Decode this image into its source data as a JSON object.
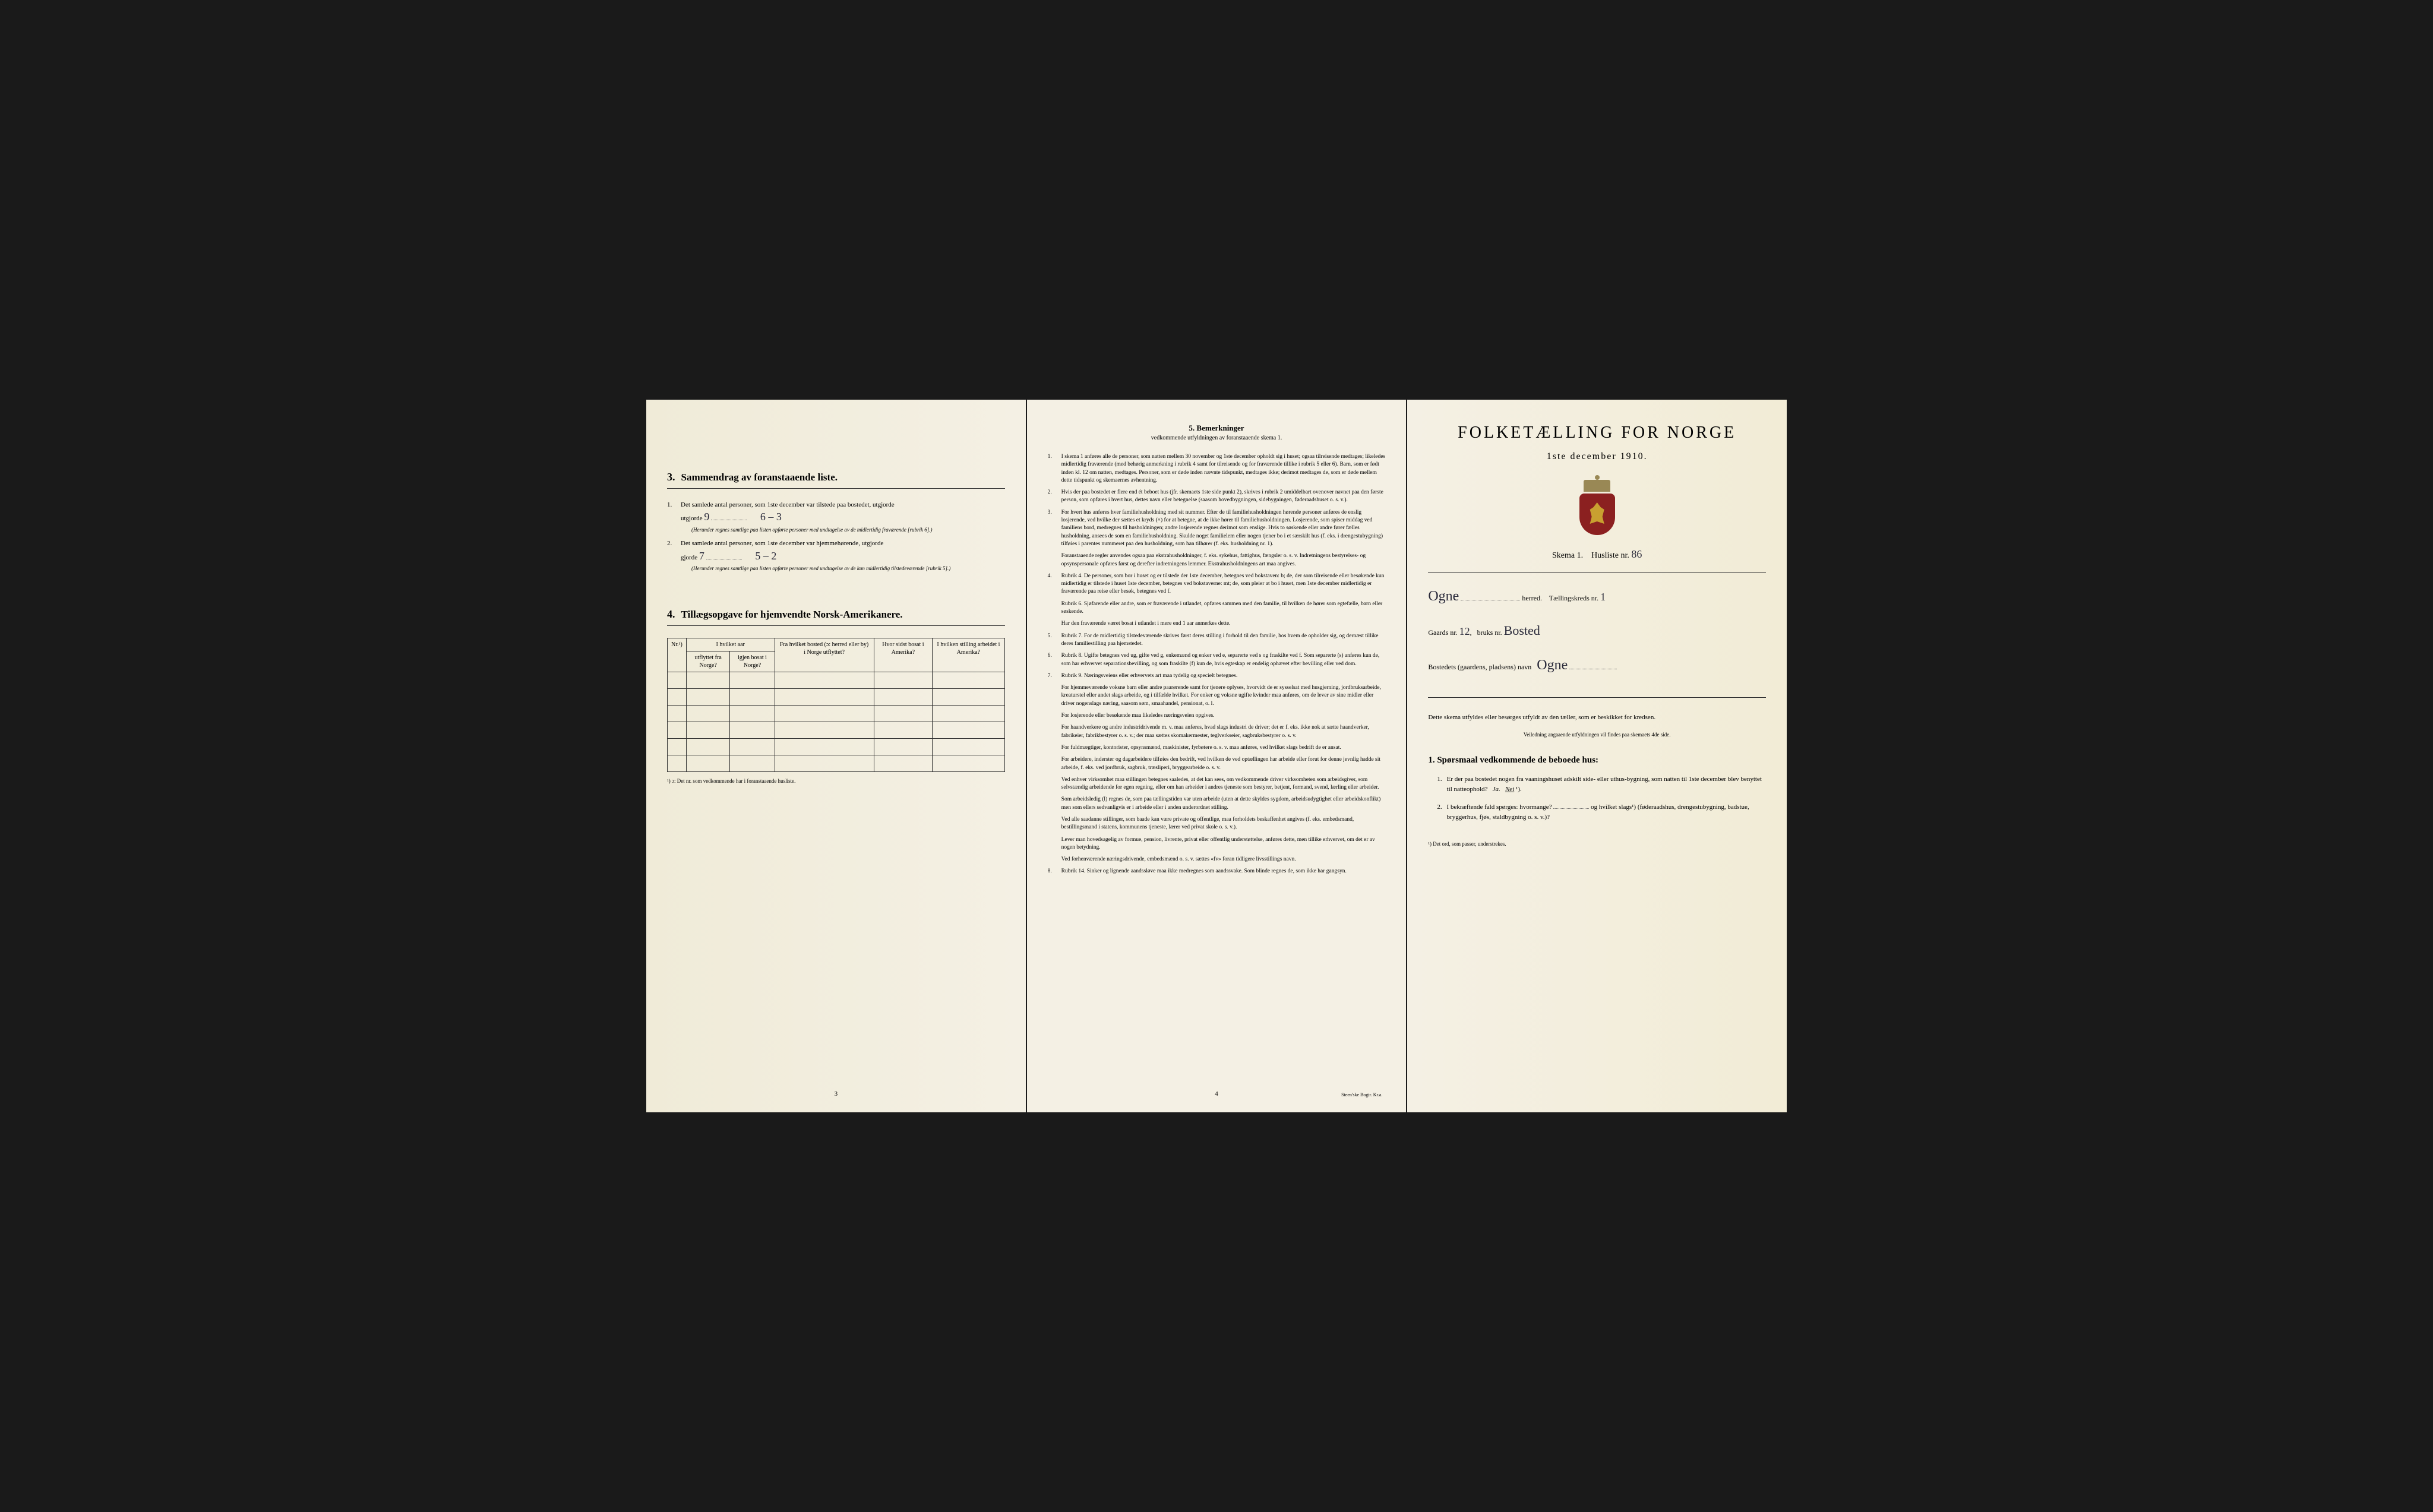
{
  "page_left": {
    "section3": {
      "num": "3.",
      "title": "Sammendrag av foranstaaende liste.",
      "item1_num": "1.",
      "item1_text": "Det samlede antal personer, som 1ste december var tilstede paa bostedet, utgjorde",
      "item1_val": "9",
      "item1_note": "6 – 3",
      "item1_sub": "(Herunder regnes samtlige paa listen opførte personer med undtagelse av de midlertidig fraværende [rubrik 6].)",
      "item2_num": "2.",
      "item2_text": "Det samlede antal personer, som 1ste december var hjemmehørende, utgjorde",
      "item2_val": "7",
      "item2_note": "5 – 2",
      "item2_sub": "(Herunder regnes samtlige paa listen opførte personer med undtagelse av de kun midlertidig tilstedeværende [rubrik 5].)"
    },
    "section4": {
      "num": "4.",
      "title": "Tillægsopgave for hjemvendte Norsk-Amerikanere.",
      "col1": "Nr.¹)",
      "col2a": "I hvilket aar",
      "col2b": "utflyttet fra Norge?",
      "col2c": "igjen bosat i Norge?",
      "col3": "Fra hvilket bosted (ɔ: herred eller by) i Norge utflyttet?",
      "col4": "Hvor sidst bosat i Amerika?",
      "col5": "I hvilken stilling arbeidet i Amerika?",
      "footnote": "¹) ɔ: Det nr. som vedkommende har i foranstaaende husliste."
    },
    "page_num": "3"
  },
  "page_middle": {
    "header_num": "5.",
    "header_title": "Bemerkninger",
    "header_sub": "vedkommende utfyldningen av foranstaaende skema 1.",
    "items": [
      {
        "num": "1.",
        "text": "I skema 1 anføres alle de personer, som natten mellem 30 november og 1ste december opholdt sig i huset; ogsaa tilreisende medtages; likeledes midlertidig fraværende (med behørig anmerkning i rubrik 4 samt for tilreisende og for fraværende tillike i rubrik 5 eller 6). Barn, som er født inden kl. 12 om natten, medtages. Personer, som er døde inden nævnte tidspunkt, medtages ikke; derimot medtages de, som er døde mellem dette tidspunkt og skemaernes avhentning."
      },
      {
        "num": "2.",
        "text": "Hvis der paa bostedet er flere end ét beboet hus (jfr. skemaets 1ste side punkt 2), skrives i rubrik 2 umiddelbart ovenover navnet paa den første person, som opføres i hvert hus, dettes navn eller betegnelse (saasom hovedbygningen, sidebygningen, føderaadshuset o. s. v.)."
      },
      {
        "num": "3.",
        "text": "For hvert hus anføres hver familiehusholdning med sit nummer. Efter de til familiehusholdningen hørende personer anføres de enslig losjerende, ved hvilke der sættes et kryds (×) for at betegne, at de ikke hører til familiehusholdningen. Losjerende, som spiser middag ved familiens bord, medregnes til husholdningen; andre losjerende regnes derimot som enslige. Hvis to søskende eller andre fører fælles husholdning, ansees de som en familiehusholdning. Skulde noget familielem eller nogen tjener bo i et særskilt hus (f. eks. i drengestubygning) tilføies i parentes nummeret paa den husholdning, som han tilhører (f. eks. husholdning nr. 1)."
      },
      {
        "num": "",
        "text": "Foranstaaende regler anvendes ogsaa paa ekstrahusholdninger, f. eks. sykehus, fattighus, fængsler o. s. v. Indretningens bestyrelses- og opsynspersonale opføres først og derefter indretningens lemmer. Ekstrahusholdningens art maa angives."
      },
      {
        "num": "4.",
        "text": "Rubrik 4. De personer, som bor i huset og er tilstede der 1ste december, betegnes ved bokstaven: b; de, der som tilreisende eller besøkende kun midlertidig er tilstede i huset 1ste december, betegnes ved bokstaverne: mt; de, som pleier at bo i huset, men 1ste december midlertidig er fraværende paa reise eller besøk, betegnes ved f."
      },
      {
        "num": "",
        "text": "Rubrik 6. Sjøfarende eller andre, som er fraværende i utlandet, opføres sammen med den familie, til hvilken de hører som egtefælle, barn eller søskende."
      },
      {
        "num": "",
        "text": "Har den fraværende været bosat i utlandet i mere end 1 aar anmerkes dette."
      },
      {
        "num": "5.",
        "text": "Rubrik 7. For de midlertidig tilstedeværende skrives først deres stilling i forhold til den familie, hos hvem de opholder sig, og dernæst tillike deres familiestilling paa hjemstedet."
      },
      {
        "num": "6.",
        "text": "Rubrik 8. Ugifte betegnes ved ug, gifte ved g, enkemænd og enker ved e, separerte ved s og fraskilte ved f. Som separerte (s) anføres kun de, som har erhvervet separationsbevilling, og som fraskilte (f) kun de, hvis egteskap er endelig ophævet efter bevilling eller ved dom."
      },
      {
        "num": "7.",
        "text": "Rubrik 9. Næringsveiens eller erhvervets art maa tydelig og specielt betegnes."
      },
      {
        "num": "",
        "text": "For hjemmeværende voksne barn eller andre paarørende samt for tjenere oplyses, hvorvidt de er sysselsat med husgjerning, jordbruksarbeide, kreaturstel eller andet slags arbeide, og i tilfælde hvilket. For enker og voksne ugifte kvinder maa anføres, om de lever av sine midler eller driver nogenslags næring, saasom søm, smaahandel, pensionat, o. l."
      },
      {
        "num": "",
        "text": "For losjerende eller besøkende maa likeledes næringsveien opgives."
      },
      {
        "num": "",
        "text": "For haandverkere og andre industridrivende m. v. maa anføres, hvad slags industri de driver; det er f. eks. ikke nok at sætte haandverker, fabrikeier, fabrikbestyrer o. s. v.; der maa sættes skomakermester, teglverkseier, sagbruksbestyrer o. s. v."
      },
      {
        "num": "",
        "text": "For fuldmægtiger, kontorister, opsynsmænd, maskinister, fyrbøtere o. s. v. maa anføres, ved hvilket slags bedrift de er ansat."
      },
      {
        "num": "",
        "text": "For arbeidere, inderster og dagarbeidere tilføies den bedrift, ved hvilken de ved optællingen har arbeide eller forut for denne jevnlig hadde sit arbeide, f. eks. ved jordbruk, sagbruk, træsliperi, bryggearbeide o. s. v."
      },
      {
        "num": "",
        "text": "Ved enhver virksomhet maa stillingen betegnes saaledes, at det kan sees, om vedkommende driver virksomheten som arbeidsgiver, som selvstændig arbeidende for egen regning, eller om han arbeider i andres tjeneste som bestyrer, betjent, formand, svend, lærling eller arbeider."
      },
      {
        "num": "",
        "text": "Som arbeidsledig (l) regnes de, som paa tællingstiden var uten arbeide (uten at dette skyldes sygdom, arbeidsudygtighet eller arbeidskonflikt) men som ellers sedvanligvis er i arbeide eller i anden underordnet stilling."
      },
      {
        "num": "",
        "text": "Ved alle saadanne stillinger, som baade kan være private og offentlige, maa forholdets beskaffenhet angives (f. eks. embedsmand, bestillingsmand i statens, kommunens tjeneste, lærer ved privat skole o. s. v.)."
      },
      {
        "num": "",
        "text": "Lever man hovedsagelig av formue, pension, livrente, privat eller offentlig understøttelse, anføres dette, men tillike erhvervet, om det er av nogen betydning."
      },
      {
        "num": "",
        "text": "Ved forhenværende næringsdrivende, embedsmænd o. s. v. sættes «fv» foran tidligere livsstillings navn."
      },
      {
        "num": "8.",
        "text": "Rubrik 14. Sinker og lignende aandssløve maa ikke medregnes som aandssvake. Som blinde regnes de, som ikke har gangsyn."
      }
    ],
    "page_num": "4",
    "printer": "Steen'ske Bogtr. Kr.a."
  },
  "page_right": {
    "title": "FOLKETÆLLING FOR NORGE",
    "subtitle": "1ste december 1910.",
    "schema_label": "Skema 1.",
    "husliste_label": "Husliste nr.",
    "husliste_val": "86",
    "herred_val": "Ogne",
    "herred_label": "herred.",
    "kreds_label": "Tællingskreds nr.",
    "kreds_val": "1",
    "gaards_label": "Gaards nr.",
    "gaards_val": "12",
    "bruks_label": "bruks nr.",
    "bruks_val": "Bosted",
    "bosted_label": "Bostedets (gaardens, pladsens) navn",
    "bosted_val": "Ogne",
    "intro": "Dette skema utfyldes eller besørges utfyldt av den tæller, som er beskikket for kredsen.",
    "intro_sub": "Veiledning angaaende utfyldningen vil findes paa skemaets 4de side.",
    "q_header_num": "1.",
    "q_header": "Spørsmaal vedkommende de beboede hus:",
    "q1_num": "1.",
    "q1_text": "Er der paa bostedet nogen fra vaaningshuset adskilt side- eller uthus-bygning, som natten til 1ste december blev benyttet til natteophold?",
    "q1_ja": "Ja.",
    "q1_nei": "Nei",
    "q1_sup": "¹).",
    "q2_num": "2.",
    "q2_text": "I bekræftende fald spørges: hvormange?",
    "q2_text2": "og hvilket slags¹) (føderaadshus, drengestubygning, badstue, bryggerhus, fjøs, staldbygning o. s. v.)?",
    "footnote": "¹) Det ord, som passer, understrekes."
  }
}
